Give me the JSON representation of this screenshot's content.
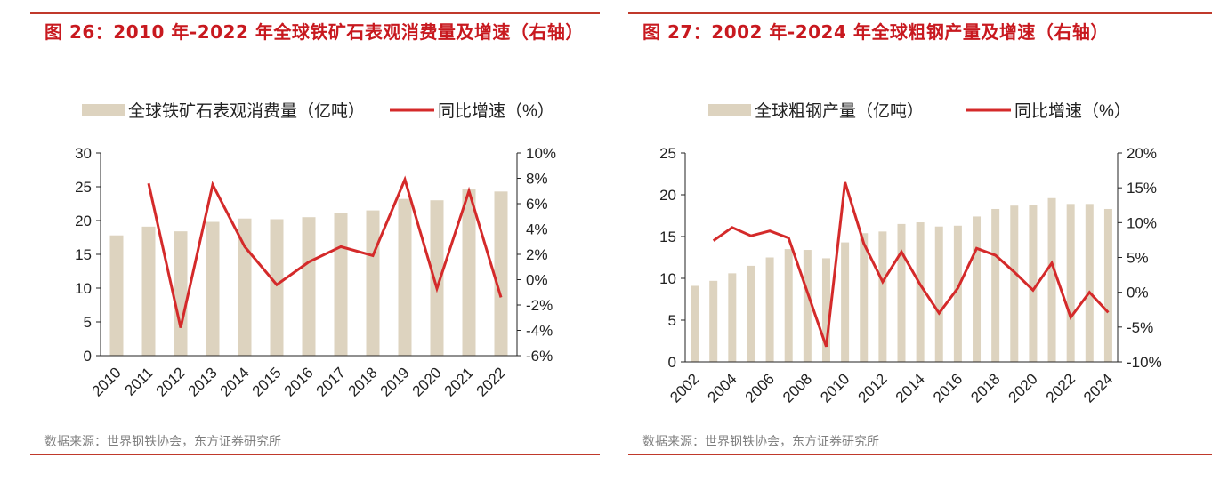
{
  "source_text": "数据来源：世界钢铁协会，东方证券研究所",
  "chart_data": [
    {
      "type": "bar+line",
      "title": "图 26：2010 年-2022 年全球铁矿石表观消费量及增速（右轴）",
      "categories": [
        "2010",
        "2011",
        "2012",
        "2013",
        "2014",
        "2015",
        "2016",
        "2017",
        "2018",
        "2019",
        "2020",
        "2021",
        "2022"
      ],
      "series": [
        {
          "name": "全球铁矿石表观消费量（亿吨）",
          "type": "bar",
          "axis": "left",
          "color": "#ddd3bf",
          "values": [
            17.8,
            19.1,
            18.4,
            19.8,
            20.3,
            20.2,
            20.5,
            21.1,
            21.5,
            23.2,
            23.0,
            24.6,
            24.3
          ]
        },
        {
          "name": "同比增速（%）",
          "type": "line",
          "axis": "right",
          "color": "#d42a2a",
          "values": [
            null,
            7.6,
            -3.8,
            7.5,
            2.6,
            -0.4,
            1.4,
            2.6,
            1.9,
            7.9,
            -0.7,
            7.0,
            -1.4
          ]
        }
      ],
      "y_left": {
        "min": 0,
        "max": 30,
        "ticks": [
          "0",
          "5",
          "10",
          "15",
          "20",
          "25",
          "30"
        ]
      },
      "y_right": {
        "min": -6,
        "max": 10,
        "ticks": [
          "-6%",
          "-4%",
          "-2%",
          "0%",
          "2%",
          "4%",
          "6%",
          "8%",
          "10%"
        ]
      },
      "legend_position": "top"
    },
    {
      "type": "bar+line",
      "title": "图 27：2002 年-2024 年全球粗钢产量及增速（右轴）",
      "categories": [
        "2002",
        "2003",
        "2004",
        "2005",
        "2006",
        "2007",
        "2008",
        "2009",
        "2010",
        "2011",
        "2012",
        "2013",
        "2014",
        "2015",
        "2016",
        "2017",
        "2018",
        "2019",
        "2020",
        "2021",
        "2022",
        "2023",
        "2024"
      ],
      "x_tick_labels": [
        "2002",
        "",
        "2004",
        "",
        "2006",
        "",
        "2008",
        "",
        "2010",
        "",
        "2012",
        "",
        "2014",
        "",
        "2016",
        "",
        "2018",
        "",
        "2020",
        "",
        "2022",
        "",
        "2024"
      ],
      "series": [
        {
          "name": "全球粗钢产量（亿吨）",
          "type": "bar",
          "axis": "left",
          "color": "#ddd3bf",
          "values": [
            9.1,
            9.7,
            10.6,
            11.5,
            12.5,
            13.5,
            13.4,
            12.4,
            14.3,
            15.4,
            15.6,
            16.5,
            16.7,
            16.2,
            16.3,
            17.4,
            18.3,
            18.7,
            18.8,
            19.6,
            18.9,
            18.9,
            18.3
          ]
        },
        {
          "name": "同比增速（%）",
          "type": "line",
          "axis": "right",
          "color": "#d42a2a",
          "values": [
            null,
            7.4,
            9.3,
            8.1,
            8.8,
            7.8,
            null,
            -7.8,
            15.8,
            7.0,
            1.5,
            5.8,
            1.1,
            -3.0,
            0.6,
            6.3,
            5.3,
            2.9,
            0.3,
            4.2,
            -3.6,
            0.0,
            -2.9
          ]
        }
      ],
      "y_left": {
        "min": 0,
        "max": 25,
        "ticks": [
          "0",
          "5",
          "10",
          "15",
          "20",
          "25"
        ]
      },
      "y_right": {
        "min": -10,
        "max": 20,
        "ticks": [
          "-10%",
          "-5%",
          "0%",
          "5%",
          "10%",
          "15%",
          "20%"
        ]
      },
      "legend_position": "top"
    }
  ]
}
